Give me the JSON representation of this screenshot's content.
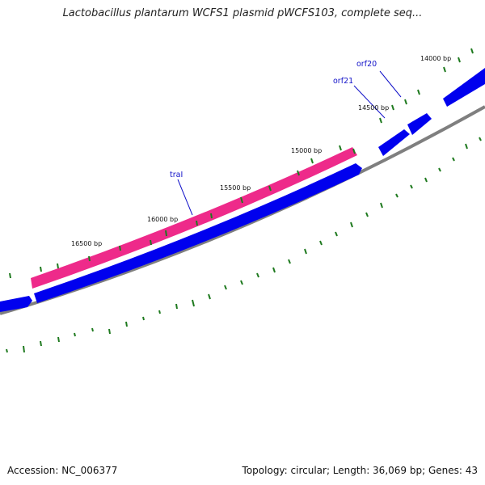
{
  "title": "Lactobacillus plantarum WCFS1 plasmid pWCFS103, complete seq...",
  "footer": {
    "accession": "Accession: NC_006377",
    "summary": "Topology: circular; Length: 36,069 bp; Genes: 43"
  },
  "ticks": [
    {
      "label": "14000 bp"
    },
    {
      "label": "14500 bp"
    },
    {
      "label": "15000 bp"
    },
    {
      "label": "15500 bp"
    },
    {
      "label": "16000 bp"
    },
    {
      "label": "16500 bp"
    }
  ],
  "genes": [
    {
      "label": "orf20"
    },
    {
      "label": "orf21"
    },
    {
      "label": "traI"
    }
  ],
  "colors": {
    "backbone": "#7f7f7f",
    "forward_gene": "#0000ee",
    "highlight_gene": "#ee2a8a",
    "tick": "#1f7a1f",
    "label": "#1010c8"
  }
}
